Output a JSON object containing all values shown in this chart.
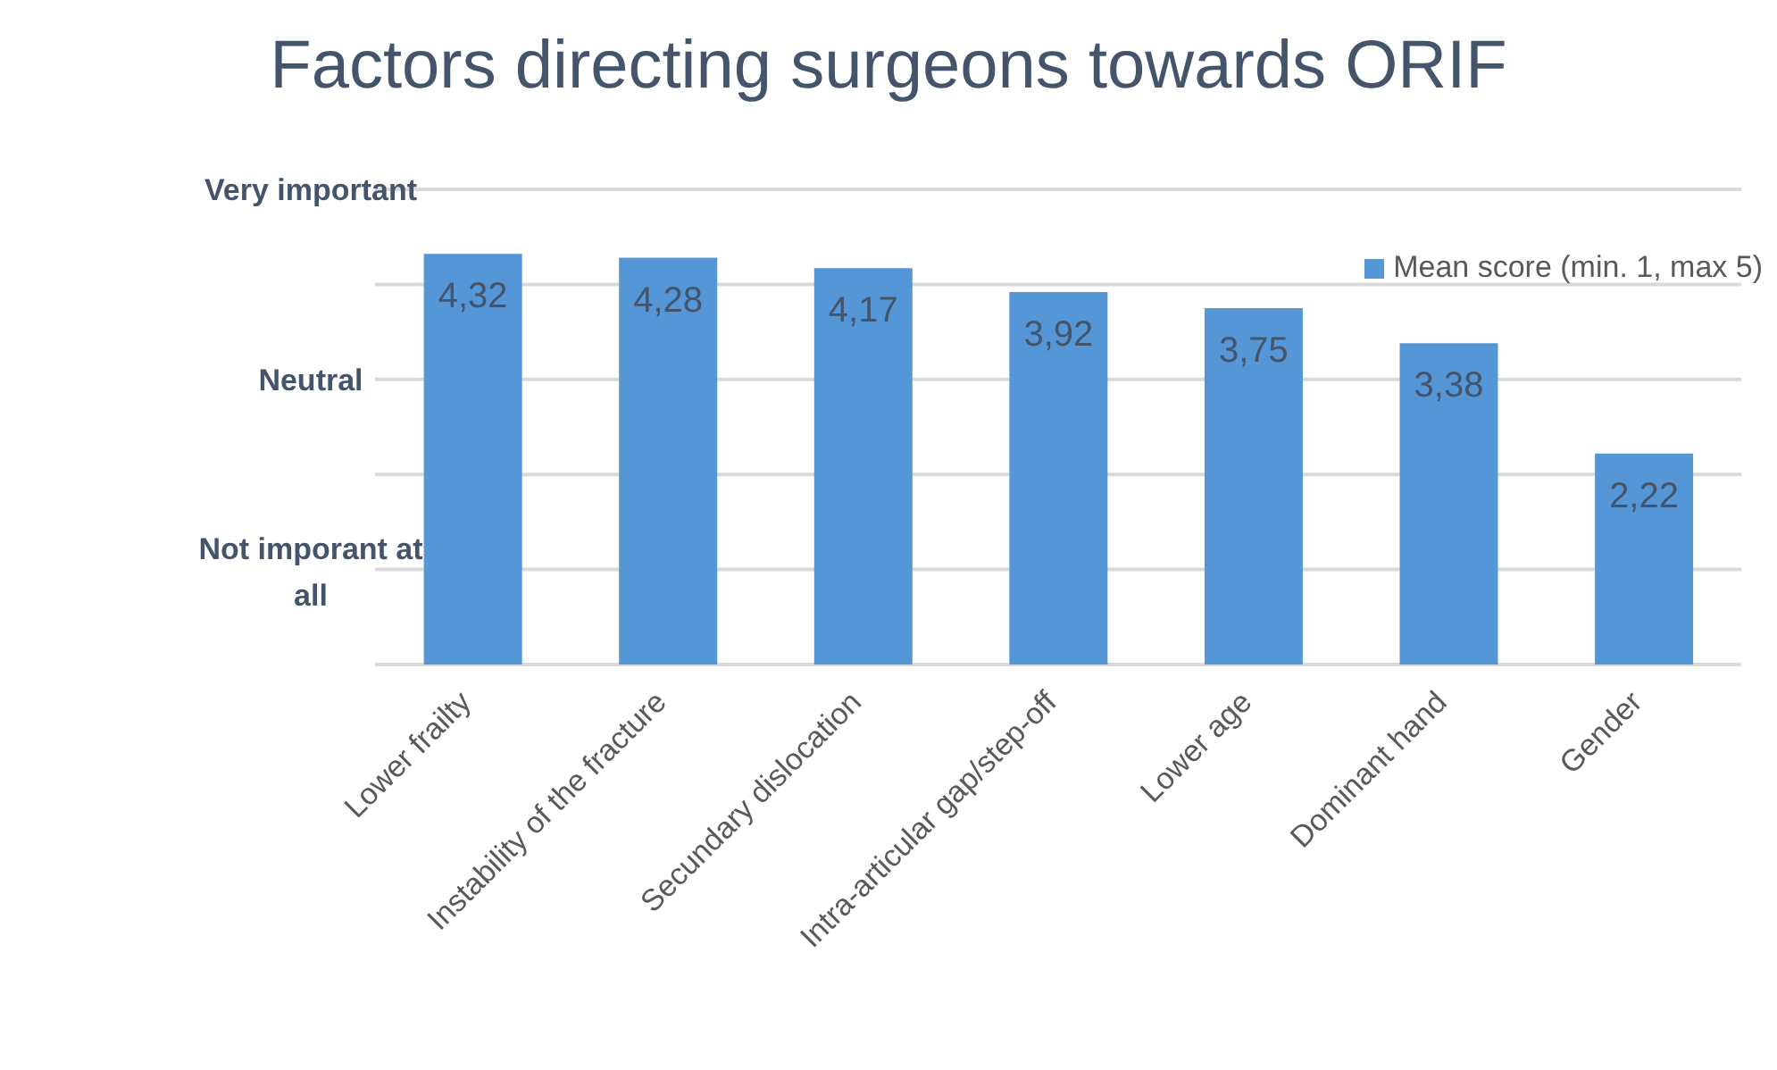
{
  "chart_data": {
    "type": "bar",
    "title": "Factors directing surgeons towards ORIF",
    "categories": [
      "Lower frailty",
      "Instability of the fracture",
      "Secundary dislocation",
      "Intra-articular gap/step-off",
      "Lower age",
      "Dominant hand",
      "Gender"
    ],
    "series": [
      {
        "name": "Mean score (min. 1, max 5)",
        "color": "#5596d6",
        "values": [
          4.32,
          4.28,
          4.17,
          3.92,
          3.75,
          3.38,
          2.22
        ],
        "value_labels": [
          "4,32",
          "4,28",
          "4,17",
          "3,92",
          "3,75",
          "3,38",
          "2,22"
        ]
      }
    ],
    "ylim": [
      0,
      5
    ],
    "yticks": [
      {
        "value": 0,
        "label": null
      },
      {
        "value": 1,
        "label": null
      },
      {
        "value": 2,
        "label": null
      },
      {
        "value": 3,
        "label": null
      },
      {
        "value": 4,
        "label": null
      },
      {
        "value": 5,
        "label": null
      }
    ],
    "annotations": [
      "Very important",
      "Neutral",
      "Not imporant at all"
    ],
    "grid": "y",
    "legend": "top right"
  }
}
